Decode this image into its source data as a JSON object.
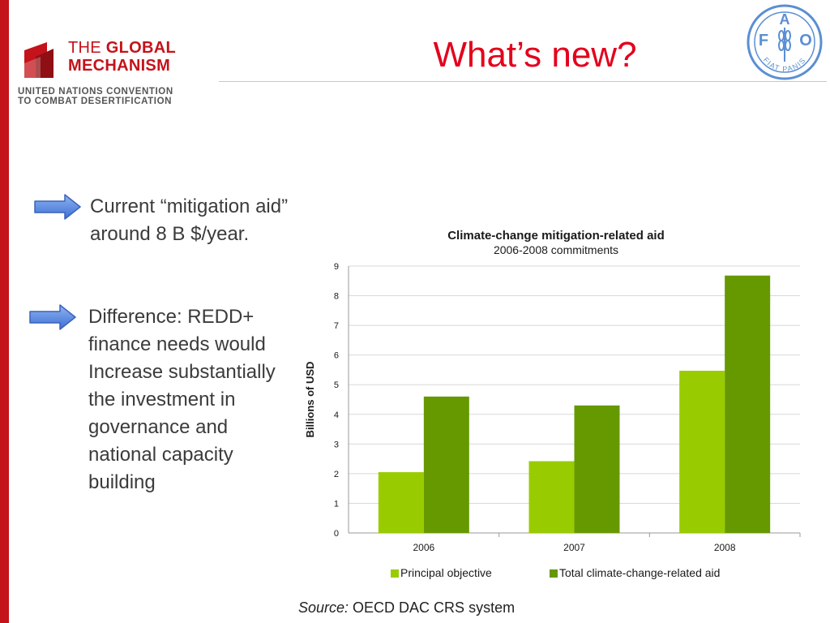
{
  "slide": {
    "title": "What’s new?",
    "bullets": [
      "Current “mitigation aid” around 8 B $/year.",
      "Difference: REDD+ finance needs would Increase substantially the investment in governance and national capacity building"
    ],
    "source_label": "Source:",
    "source_text": " OECD DAC CRS system"
  },
  "logos": {
    "gm_line1_thin": "THE ",
    "gm_line1_bold": "GLOBAL",
    "gm_line2": "MECHANISM",
    "gm_sub1": "UNITED NATIONS CONVENTION",
    "gm_sub2": "TO COMBAT DESERTIFICATION",
    "fao_letters": [
      "F",
      "A",
      "O"
    ],
    "fao_motto": "FIAT PANIS"
  },
  "colors": {
    "accent_red": "#c4131a",
    "title_red": "#e3001b",
    "fao_blue": "#5b8fd2",
    "series_light": "#99cc00",
    "series_dark": "#669900"
  },
  "chart_data": {
    "type": "bar",
    "title": "Climate-change mitigation-related  aid",
    "subtitle": "2006-2008 commitments",
    "xlabel": "",
    "ylabel": "Billions of USD",
    "categories": [
      "2006",
      "2007",
      "2008"
    ],
    "series": [
      {
        "name": "Principal objective",
        "values": [
          2.05,
          2.42,
          5.47
        ],
        "color": "#99cc00"
      },
      {
        "name": "Total climate-change-related aid",
        "values": [
          4.6,
          4.3,
          8.68
        ],
        "color": "#669900"
      }
    ],
    "ylim": [
      0,
      9
    ],
    "yticks": [
      "0",
      "1",
      "2",
      "3",
      "4",
      "5",
      "6",
      "7",
      "8",
      "9"
    ],
    "grid": true,
    "legend_position": "bottom"
  }
}
